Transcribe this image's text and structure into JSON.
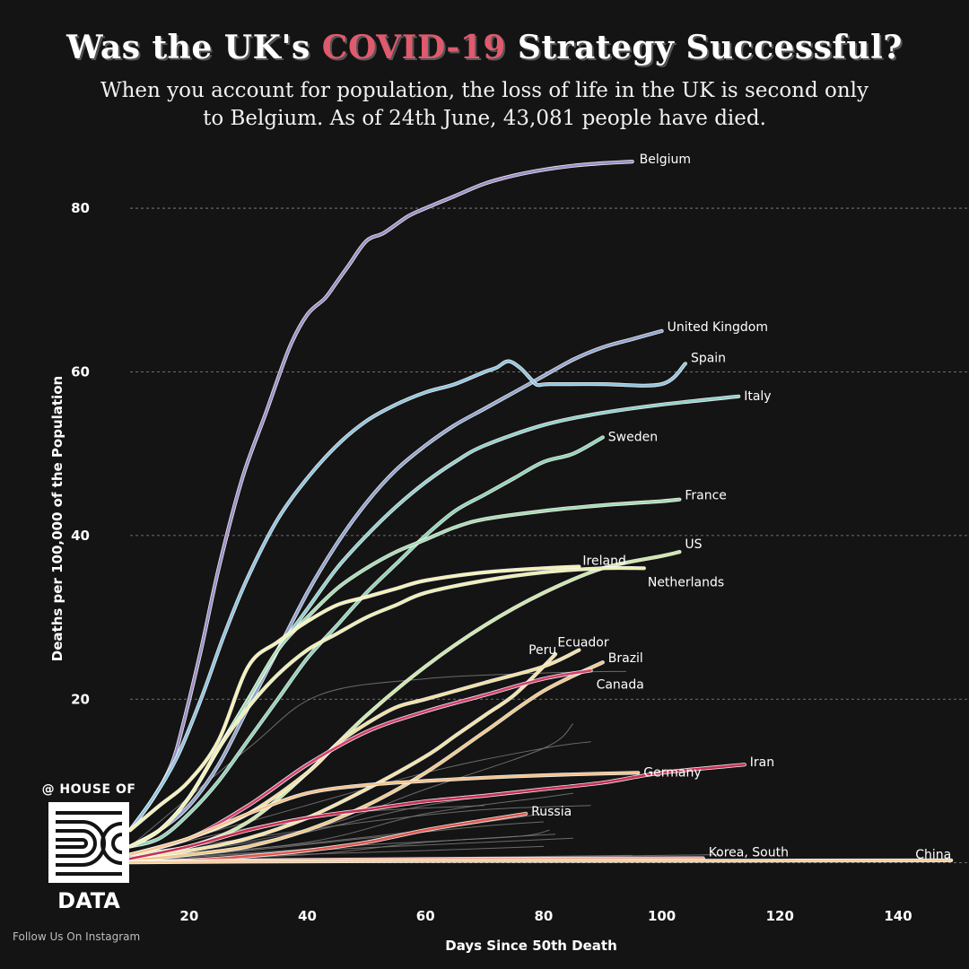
{
  "title_parts": {
    "before": "Was the UK's ",
    "highlight": "COVID-19",
    "after": " Strategy Successful?"
  },
  "subtitle_line1": "When you account for population, the loss of life in the UK is second only",
  "subtitle_line2": "to Belgium. As of 24th June, 43,081 people have died.",
  "logo": {
    "top_text": "@ HOUSE OF",
    "bottom_text": "DATA",
    "follow_text": "Follow Us On Instagram"
  },
  "colors": {
    "background": "#141414",
    "highlight": "#e05a6e",
    "grid": "#8a8a8a",
    "other_countries": "#7a7a7a"
  },
  "chart_data": {
    "type": "line",
    "xlabel": "Days Since 50th Death",
    "ylabel": "Deaths per 100,000 of the Population",
    "xlim": [
      10,
      152
    ],
    "ylim": [
      -3,
      89
    ],
    "xticks": [
      20,
      40,
      60,
      80,
      100,
      120,
      140
    ],
    "yticks": [
      20,
      40,
      60,
      80
    ],
    "grid": "horizontal dashed",
    "series": [
      {
        "name": "Belgium",
        "label": "Belgium",
        "color": "#9b8cc7",
        "x": [
          10,
          14,
          17,
          19,
          22,
          25,
          29,
          33,
          37,
          40,
          43,
          45,
          47,
          50,
          53,
          57,
          60,
          65,
          70,
          75,
          80,
          85,
          90,
          95
        ],
        "y": [
          4,
          8,
          12,
          17,
          26,
          36,
          47,
          55,
          63,
          67,
          69,
          71,
          73,
          76,
          77,
          79,
          80,
          81.5,
          83,
          84,
          84.7,
          85.2,
          85.5,
          85.7
        ]
      },
      {
        "name": "United Kingdom",
        "label": "United Kingdom",
        "color": "#8fa3cf",
        "x": [
          10,
          15,
          20,
          25,
          30,
          35,
          40,
          45,
          50,
          55,
          60,
          65,
          70,
          75,
          80,
          85,
          90,
          95,
          100
        ],
        "y": [
          2,
          4,
          7,
          12,
          19,
          26,
          33,
          39,
          44,
          48,
          51,
          53.5,
          55.5,
          57.5,
          59.5,
          61.5,
          63,
          64,
          65
        ]
      },
      {
        "name": "Spain",
        "label": "Spain",
        "color": "#8ec4e0",
        "x": [
          10,
          14,
          18,
          22,
          26,
          30,
          35,
          40,
          45,
          50,
          55,
          60,
          65,
          70,
          72,
          74,
          76,
          78,
          79,
          81,
          90,
          100,
          104
        ],
        "y": [
          4,
          8,
          13,
          20,
          28,
          35,
          42,
          47,
          51,
          54,
          56,
          57.5,
          58.5,
          60,
          60.5,
          61.3,
          60.5,
          59,
          58.4,
          58.5,
          58.5,
          58.5,
          61
        ]
      },
      {
        "name": "Italy",
        "label": "Italy",
        "color": "#8fd0cb",
        "x": [
          10,
          15,
          20,
          25,
          30,
          35,
          40,
          45,
          50,
          55,
          60,
          65,
          70,
          80,
          90,
          100,
          113
        ],
        "y": [
          2,
          4,
          8,
          14,
          20,
          26,
          31,
          36,
          40,
          43.5,
          46.5,
          49,
          51,
          53.5,
          55,
          56,
          57
        ]
      },
      {
        "name": "Sweden",
        "label": "Sweden",
        "color": "#8fd4b5",
        "x": [
          10,
          15,
          20,
          25,
          30,
          35,
          40,
          45,
          50,
          55,
          60,
          65,
          70,
          75,
          80,
          85,
          90
        ],
        "y": [
          2,
          3,
          6,
          10,
          15,
          20,
          25,
          29,
          33,
          36.5,
          40,
          43,
          45,
          47,
          49,
          50,
          52
        ]
      },
      {
        "name": "France",
        "label": "France",
        "color": "#a6dcb2",
        "x": [
          10,
          15,
          20,
          25,
          30,
          35,
          40,
          45,
          50,
          55,
          60,
          65,
          70,
          80,
          90,
          100,
          103
        ],
        "y": [
          2,
          4,
          8,
          14,
          20,
          26,
          30,
          33.5,
          36,
          38,
          39.5,
          41,
          42,
          43,
          43.7,
          44.2,
          44.4
        ]
      },
      {
        "name": "US",
        "label": "US",
        "color": "#cbe8a8",
        "x": [
          10,
          20,
          30,
          40,
          50,
          60,
          70,
          80,
          90,
          100,
          103
        ],
        "y": [
          1,
          2,
          5,
          11,
          18,
          24,
          29,
          33,
          36,
          37.5,
          38
        ]
      },
      {
        "name": "Netherlands",
        "label": "Netherlands",
        "color": "#eef0b0",
        "x": [
          10,
          15,
          20,
          25,
          30,
          35,
          40,
          45,
          50,
          55,
          60,
          70,
          80,
          90,
          97
        ],
        "y": [
          2,
          4,
          8,
          14,
          19,
          23,
          26,
          28,
          30,
          31.5,
          33,
          34.5,
          35.5,
          36,
          36
        ]
      },
      {
        "name": "Ireland",
        "label": "Ireland",
        "color": "#f6f2b4",
        "x": [
          10,
          15,
          20,
          25,
          30,
          35,
          40,
          45,
          50,
          55,
          60,
          70,
          80,
          86
        ],
        "y": [
          4,
          7,
          10,
          15,
          24,
          27,
          29.5,
          31.5,
          32.5,
          33.5,
          34.5,
          35.5,
          36,
          36.2
        ]
      },
      {
        "name": "Peru",
        "label": "Peru",
        "color": "#f3e3a5",
        "x": [
          10,
          20,
          30,
          40,
          50,
          60,
          65,
          70,
          75,
          80,
          82
        ],
        "y": [
          0.5,
          1.5,
          3,
          5.5,
          9,
          13,
          15.5,
          18,
          20.5,
          24,
          25.5
        ]
      },
      {
        "name": "Ecuador",
        "label": "Ecuador",
        "color": "#f3e0a0",
        "x": [
          10,
          20,
          30,
          40,
          45,
          50,
          55,
          60,
          70,
          80,
          86
        ],
        "y": [
          1,
          3,
          6,
          11,
          14.5,
          17,
          19,
          20,
          22,
          24,
          26
        ]
      },
      {
        "name": "Brazil",
        "label": "Brazil",
        "color": "#f0c98a",
        "x": [
          10,
          20,
          30,
          40,
          50,
          60,
          70,
          80,
          90
        ],
        "y": [
          0.3,
          1,
          2,
          4,
          7,
          11,
          16,
          21,
          24.5
        ]
      },
      {
        "name": "Canada",
        "label": "Canada",
        "color": "#d4406e",
        "x": [
          10,
          20,
          30,
          40,
          50,
          60,
          70,
          80,
          88
        ],
        "y": [
          1,
          3,
          7,
          12,
          16,
          18.5,
          20.5,
          22.5,
          23.5
        ]
      },
      {
        "name": "Germany",
        "label": "Germany",
        "color": "#f5c48e",
        "x": [
          10,
          20,
          30,
          40,
          50,
          60,
          70,
          80,
          90,
          96
        ],
        "y": [
          1,
          3,
          6,
          8.5,
          9.5,
          10,
          10.4,
          10.7,
          10.9,
          11
        ]
      },
      {
        "name": "Iran",
        "label": "Iran",
        "color": "#c92f55",
        "x": [
          10,
          20,
          30,
          40,
          50,
          60,
          70,
          80,
          90,
          100,
          114
        ],
        "y": [
          0.5,
          2,
          4,
          5.5,
          6.5,
          7.5,
          8.2,
          9,
          9.8,
          11,
          12
        ]
      },
      {
        "name": "Russia",
        "label": "Russia",
        "color": "#e0594e",
        "x": [
          10,
          20,
          30,
          40,
          50,
          60,
          70,
          77
        ],
        "y": [
          0.1,
          0.3,
          0.8,
          1.5,
          2.5,
          4,
          5.2,
          6
        ]
      },
      {
        "name": "Korea, South",
        "label": "Korea, South",
        "color": "#f2a08a",
        "x": [
          10,
          30,
          60,
          90,
          107
        ],
        "y": [
          0.1,
          0.3,
          0.45,
          0.52,
          0.55
        ]
      },
      {
        "name": "China",
        "label": "China",
        "color": "#f5d0a0",
        "x": [
          10,
          30,
          60,
          100,
          149
        ],
        "y": [
          0.05,
          0.15,
          0.22,
          0.25,
          0.3
        ]
      }
    ],
    "other_countries": [
      {
        "x": [
          10,
          30,
          42,
          60,
          80,
          94
        ],
        "y": [
          2,
          14,
          20.5,
          22.5,
          23.2,
          23.4
        ]
      },
      {
        "x": [
          10,
          30,
          60,
          80,
          88
        ],
        "y": [
          1,
          5,
          11,
          14,
          14.8
        ]
      },
      {
        "x": [
          10,
          35,
          60,
          85,
          92
        ],
        "y": [
          0.5,
          3,
          7,
          9.5,
          10
        ]
      },
      {
        "x": [
          10,
          40,
          60,
          80,
          85
        ],
        "y": [
          0.5,
          4,
          9,
          14,
          17
        ]
      },
      {
        "x": [
          10,
          40,
          60,
          80,
          85
        ],
        "y": [
          0.3,
          2.5,
          6,
          8,
          8.5
        ]
      },
      {
        "x": [
          10,
          30,
          50,
          70,
          88
        ],
        "y": [
          1,
          3,
          5,
          6.5,
          7
        ]
      },
      {
        "x": [
          10,
          30,
          50,
          70,
          80
        ],
        "y": [
          0.3,
          1.5,
          3,
          4.5,
          5
        ]
      },
      {
        "x": [
          10,
          40,
          60,
          82
        ],
        "y": [
          0.2,
          1,
          2.5,
          3.5
        ]
      },
      {
        "x": [
          10,
          40,
          70,
          85
        ],
        "y": [
          0.2,
          1.5,
          2.5,
          3
        ]
      },
      {
        "x": [
          10,
          30,
          60,
          80
        ],
        "y": [
          0.1,
          0.8,
          1.5,
          2
        ]
      },
      {
        "x": [
          10,
          30,
          60,
          90,
          110
        ],
        "y": [
          0.1,
          0.3,
          0.6,
          0.8,
          1
        ]
      },
      {
        "x": [
          10,
          40,
          70,
          95
        ],
        "y": [
          0.1,
          0.4,
          0.7,
          0.9
        ]
      },
      {
        "x": [
          10,
          35,
          60,
          80
        ],
        "y": [
          0.5,
          2,
          4,
          6
        ]
      },
      {
        "x": [
          10,
          25,
          45,
          70
        ],
        "y": [
          0.8,
          3.5,
          6,
          7
        ]
      },
      {
        "x": [
          10,
          30,
          50,
          75,
          81
        ],
        "y": [
          0.4,
          1.2,
          2.2,
          3.2,
          4
        ]
      }
    ]
  }
}
